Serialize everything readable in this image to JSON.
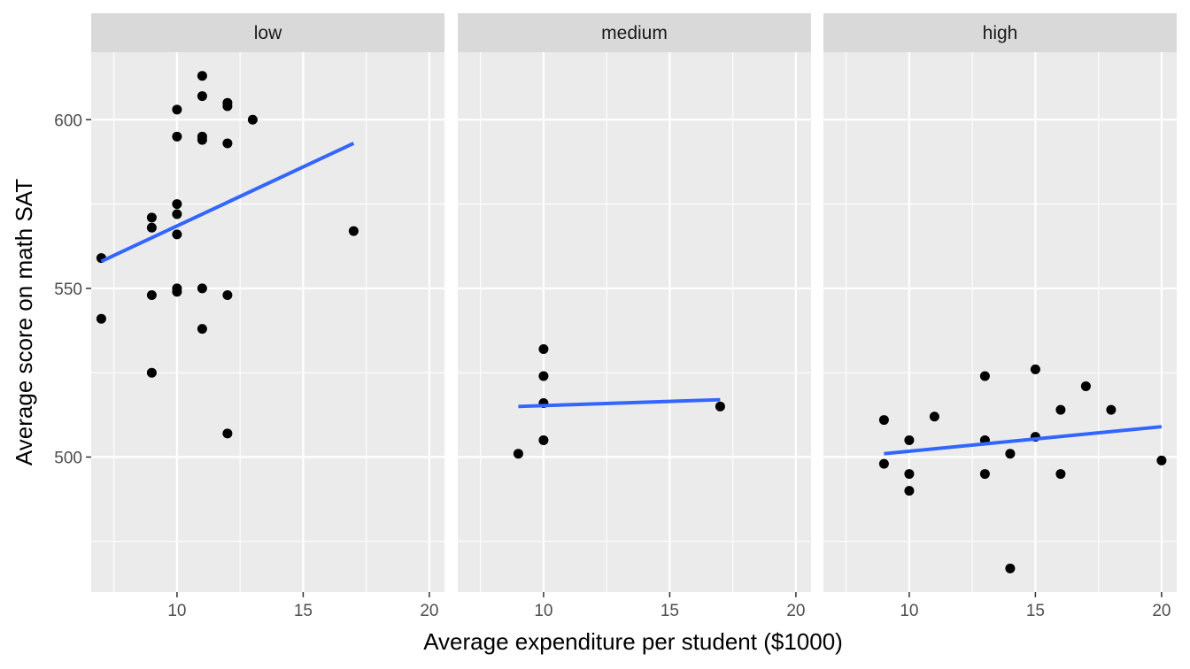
{
  "chart_data": {
    "type": "scatter",
    "xlabel": "Average expenditure per student ($1000)",
    "ylabel": "Average score on math SAT",
    "xlim": [
      6.6,
      20.6
    ],
    "ylim": [
      460,
      620
    ],
    "x_ticks": [
      10,
      15,
      20
    ],
    "y_ticks": [
      500,
      550,
      600
    ],
    "grid": true,
    "colors": {
      "panel_background": "#ebebeb",
      "strip_background": "#d9d9d9",
      "gridline": "#ffffff",
      "point": "#000000",
      "trend_line": "#3366ff"
    },
    "panels": [
      {
        "facet": "low",
        "points": [
          {
            "x": 7,
            "y": 559
          },
          {
            "x": 7,
            "y": 541
          },
          {
            "x": 9,
            "y": 571
          },
          {
            "x": 9,
            "y": 568
          },
          {
            "x": 9,
            "y": 548
          },
          {
            "x": 9,
            "y": 525
          },
          {
            "x": 10,
            "y": 603
          },
          {
            "x": 10,
            "y": 595
          },
          {
            "x": 10,
            "y": 575
          },
          {
            "x": 10,
            "y": 572
          },
          {
            "x": 10,
            "y": 566
          },
          {
            "x": 10,
            "y": 550
          },
          {
            "x": 10,
            "y": 549
          },
          {
            "x": 11,
            "y": 613
          },
          {
            "x": 11,
            "y": 607
          },
          {
            "x": 11,
            "y": 595
          },
          {
            "x": 11,
            "y": 594
          },
          {
            "x": 11,
            "y": 550
          },
          {
            "x": 11,
            "y": 538
          },
          {
            "x": 12,
            "y": 605
          },
          {
            "x": 12,
            "y": 604
          },
          {
            "x": 12,
            "y": 593
          },
          {
            "x": 12,
            "y": 548
          },
          {
            "x": 12,
            "y": 507
          },
          {
            "x": 13,
            "y": 600
          },
          {
            "x": 17,
            "y": 567
          }
        ],
        "trend": {
          "x": [
            7,
            17
          ],
          "y": [
            558,
            593
          ]
        }
      },
      {
        "facet": "medium",
        "points": [
          {
            "x": 9,
            "y": 501
          },
          {
            "x": 10,
            "y": 532
          },
          {
            "x": 10,
            "y": 524
          },
          {
            "x": 10,
            "y": 516
          },
          {
            "x": 10,
            "y": 505
          },
          {
            "x": 17,
            "y": 515
          }
        ],
        "trend": {
          "x": [
            9,
            17
          ],
          "y": [
            515,
            517
          ]
        }
      },
      {
        "facet": "high",
        "points": [
          {
            "x": 9,
            "y": 511
          },
          {
            "x": 9,
            "y": 498
          },
          {
            "x": 10,
            "y": 505
          },
          {
            "x": 10,
            "y": 495
          },
          {
            "x": 10,
            "y": 490
          },
          {
            "x": 11,
            "y": 512
          },
          {
            "x": 13,
            "y": 524
          },
          {
            "x": 13,
            "y": 505
          },
          {
            "x": 13,
            "y": 495
          },
          {
            "x": 14,
            "y": 501
          },
          {
            "x": 14,
            "y": 467
          },
          {
            "x": 15,
            "y": 526
          },
          {
            "x": 15,
            "y": 506
          },
          {
            "x": 16,
            "y": 514
          },
          {
            "x": 16,
            "y": 495
          },
          {
            "x": 17,
            "y": 521
          },
          {
            "x": 18,
            "y": 514
          },
          {
            "x": 20,
            "y": 499
          }
        ],
        "trend": {
          "x": [
            9,
            20
          ],
          "y": [
            501,
            509
          ]
        }
      }
    ]
  }
}
